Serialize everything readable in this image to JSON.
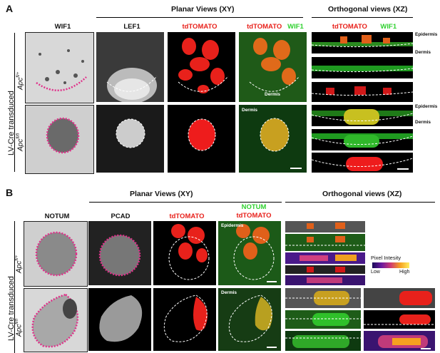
{
  "panels": [
    {
      "letter": "A",
      "planar_title": "Planar Views (XY)",
      "orthogonal_title": "Orthogonal views (XZ)",
      "columns": [
        "WIF1",
        "LEF1",
        "tdTOMATO",
        "tdTOMATO",
        "WIF1"
      ],
      "orth_columns": [
        "tdTOMATO",
        "WIF1"
      ],
      "side_label": "LV-Cre transduced",
      "rows": [
        {
          "gene": "Apc",
          "sup": "fl/+"
        },
        {
          "gene": "Apc",
          "sup": "fl/fl"
        }
      ],
      "layer_labels": [
        "Epidermis",
        "Dermis",
        "Epidermis",
        "Dermis"
      ],
      "inset_labels": [
        "Dermis",
        "Dermis"
      ]
    },
    {
      "letter": "B",
      "planar_title": "Planar Views (XY)",
      "orthogonal_title": "Orthogonal views (XZ)",
      "columns": [
        "NOTUM",
        "PCAD",
        "tdTOMATO"
      ],
      "merge_column": [
        "NOTUM",
        "tdTOMATO"
      ],
      "side_label": "LV-Cre transduced",
      "rows": [
        {
          "gene": "Apc",
          "sup": "fl/+"
        },
        {
          "gene": "Apc",
          "sup": "fl/fl"
        }
      ],
      "inset_labels": [
        "Epidermis",
        "Dermis"
      ],
      "legend": {
        "title": "Pixel Intesity",
        "low": "Low",
        "high": "High"
      }
    }
  ],
  "colors": {
    "red_channel": "#e8211b",
    "green_channel": "#2fd12f",
    "magenta_dots": "#e0308a"
  }
}
